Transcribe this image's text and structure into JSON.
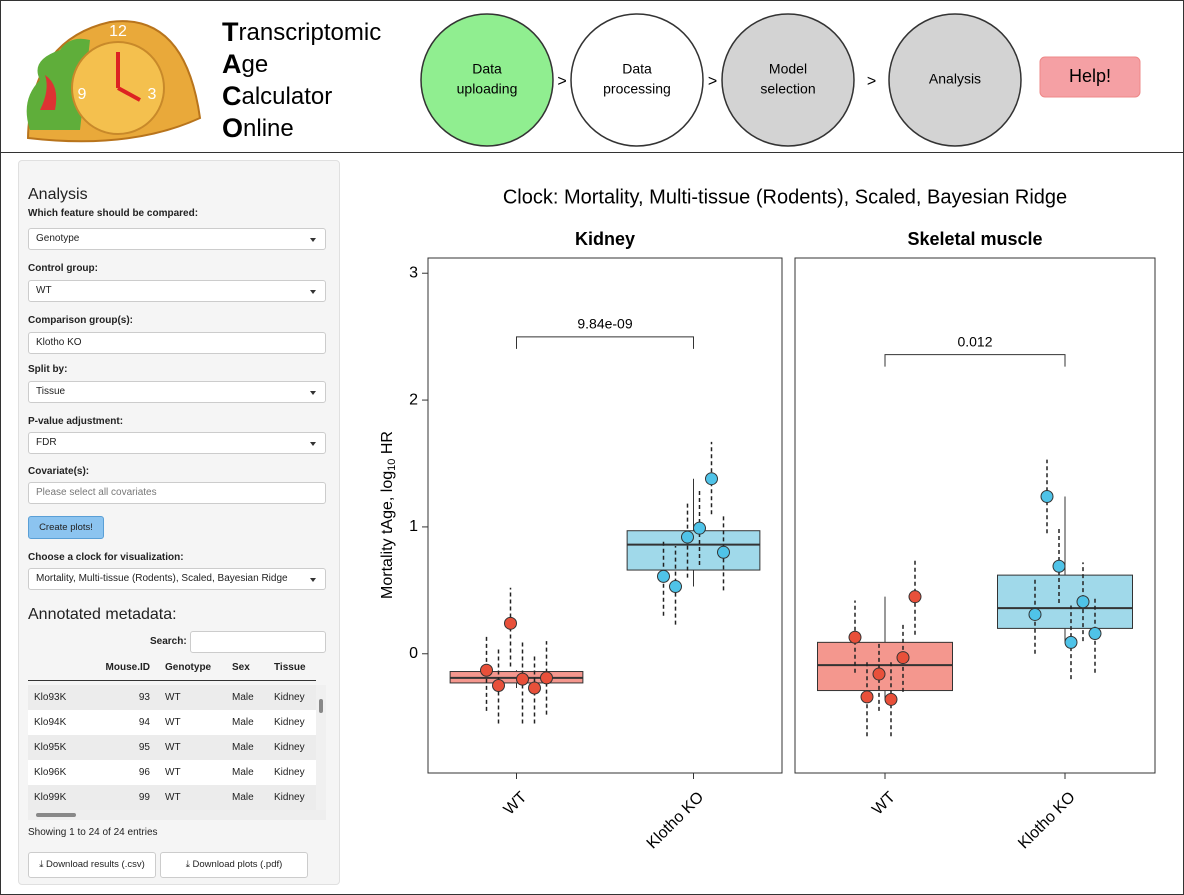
{
  "header": {
    "title": [
      {
        "initial": "T",
        "rest": "ranscriptomic"
      },
      {
        "initial": "A",
        "rest": "ge"
      },
      {
        "initial": "C",
        "rest": "alculator"
      },
      {
        "initial": "O",
        "rest": "nline"
      }
    ],
    "steps": [
      {
        "lines": [
          "Data",
          "uploading"
        ],
        "color": "#90ee90"
      },
      {
        "lines": [
          "Data",
          "processing"
        ],
        "color": "#ffffff"
      },
      {
        "lines": [
          "Model",
          "selection"
        ],
        "color": "#d3d3d3"
      },
      {
        "lines": [
          "Analysis"
        ],
        "color": "#d3d3d3"
      }
    ],
    "separator": ">",
    "help": "Help!"
  },
  "sidebar": {
    "heading": "Analysis",
    "fields": [
      {
        "label": "Which feature should be compared:",
        "value": "Genotype"
      },
      {
        "label": "Control group:",
        "value": "WT"
      },
      {
        "label": "Comparison group(s):",
        "value": "Klotho KO"
      },
      {
        "label": "Split by:",
        "value": "Tissue"
      },
      {
        "label": "P-value adjustment:",
        "value": "FDR"
      },
      {
        "label": "Covariate(s):",
        "value": "Please select all covariates"
      }
    ],
    "create_button": "Create plots!",
    "clock_label": "Choose a clock for visualization:",
    "clock_value": "Mortality, Multi-tissue (Rodents), Scaled, Bayesian Ridge",
    "metadata_heading": "Annotated metadata:",
    "search_label": "Search:",
    "table": {
      "columns": [
        "Mouse.ID",
        "Genotype",
        "Sex",
        "Tissue"
      ],
      "rows": [
        {
          "name": "Klo93K",
          "cells": [
            93,
            "WT",
            "Male",
            "Kidney"
          ]
        },
        {
          "name": "Klo94K",
          "cells": [
            94,
            "WT",
            "Male",
            "Kidney"
          ]
        },
        {
          "name": "Klo95K",
          "cells": [
            95,
            "WT",
            "Male",
            "Kidney"
          ]
        },
        {
          "name": "Klo96K",
          "cells": [
            96,
            "WT",
            "Male",
            "Kidney"
          ]
        },
        {
          "name": "Klo99K",
          "cells": [
            99,
            "WT",
            "Male",
            "Kidney"
          ]
        }
      ]
    },
    "info": "Showing 1 to 24 of 24 entries",
    "downloads": [
      "Download results (.csv)",
      "Download plots (.pdf)"
    ]
  },
  "chart_data": {
    "type": "box",
    "title": "Clock: Mortality, Multi-tissue (Rodents), Scaled, Bayesian Ridge",
    "y_label": {
      "text": "Mortality tAge, log",
      "sub": "10",
      "rest": " HR"
    },
    "ylim": [
      -0.94,
      3.12
    ],
    "yticks": [
      0,
      1,
      2,
      3
    ],
    "categories": [
      "WT",
      "Klotho KO"
    ],
    "box_colors": [
      "#f4978e",
      "#a0d9ea"
    ],
    "point_colors": [
      "#e8503a",
      "#4fc3e8"
    ],
    "panels": [
      {
        "title": "Kidney",
        "p_value": "9.84e-09",
        "boxes": [
          {
            "whisker_low": -0.27,
            "q1": -0.23,
            "median": -0.19,
            "q3": -0.14,
            "whisker_high": -0.13
          },
          {
            "whisker_low": 0.53,
            "q1": 0.66,
            "median": 0.86,
            "q3": 0.97,
            "whisker_high": 1.38
          }
        ],
        "points": [
          [
            {
              "value": -0.13,
              "lower": -0.45,
              "upper": 0.15
            },
            {
              "value": -0.25,
              "lower": -0.55,
              "upper": 0.05
            },
            {
              "value": 0.24,
              "lower": -0.1,
              "upper": 0.52
            },
            {
              "value": -0.2,
              "lower": -0.55,
              "upper": 0.1
            },
            {
              "value": -0.27,
              "lower": -0.55,
              "upper": 0.0
            },
            {
              "value": -0.19,
              "lower": -0.48,
              "upper": 0.1
            }
          ],
          [
            {
              "value": 0.61,
              "lower": 0.3,
              "upper": 0.9
            },
            {
              "value": 0.53,
              "lower": 0.23,
              "upper": 0.85
            },
            {
              "value": 0.92,
              "lower": 0.6,
              "upper": 1.2
            },
            {
              "value": 0.99,
              "lower": 0.7,
              "upper": 1.3
            },
            {
              "value": 1.38,
              "lower": 1.1,
              "upper": 1.67
            },
            {
              "value": 0.8,
              "lower": 0.5,
              "upper": 1.1
            }
          ]
        ]
      },
      {
        "title": "Skeletal muscle",
        "p_value": "0.012",
        "boxes": [
          {
            "whisker_low": -0.36,
            "q1": -0.29,
            "median": -0.09,
            "q3": 0.09,
            "whisker_high": 0.45
          },
          {
            "whisker_low": 0.09,
            "q1": 0.2,
            "median": 0.36,
            "q3": 0.62,
            "whisker_high": 1.24
          }
        ],
        "points": [
          [
            {
              "value": 0.13,
              "lower": -0.15,
              "upper": 0.42
            },
            {
              "value": -0.34,
              "lower": -0.65,
              "upper": -0.05
            },
            {
              "value": -0.16,
              "lower": -0.45,
              "upper": 0.1
            },
            {
              "value": -0.36,
              "lower": -0.65,
              "upper": -0.05
            },
            {
              "value": -0.03,
              "lower": -0.3,
              "upper": 0.25
            },
            {
              "value": 0.45,
              "lower": 0.15,
              "upper": 0.74
            }
          ],
          [
            {
              "value": 0.31,
              "lower": 0.0,
              "upper": 0.6
            },
            {
              "value": 1.24,
              "lower": 0.95,
              "upper": 1.53
            },
            {
              "value": 0.69,
              "lower": 0.4,
              "upper": 1.0
            },
            {
              "value": 0.09,
              "lower": -0.2,
              "upper": 0.38
            },
            {
              "value": 0.41,
              "lower": 0.1,
              "upper": 0.72
            },
            {
              "value": 0.16,
              "lower": -0.15,
              "upper": 0.45
            }
          ]
        ]
      }
    ]
  }
}
